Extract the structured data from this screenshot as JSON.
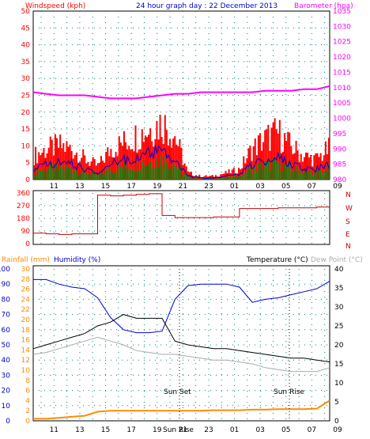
{
  "header": {
    "left_title": "Windspeed (kph)",
    "center_title": "24 hour graph day : 22 December 2013",
    "right_title": "Barometer (hpa)"
  },
  "bottom_header": {
    "rainfall": "Rainfall (mm)",
    "humidity": "Humidity (%)",
    "temperature": "Temperature (°C)",
    "dewpoint": "Dew Point (°C)"
  },
  "wind_dirs": [
    "N",
    "W",
    "S",
    "E",
    "N"
  ],
  "annotations": {
    "sunset": "Sun Set",
    "sunrise": "Sun Rise",
    "sun_rise_short": "Sun Rise"
  },
  "colors": {
    "windspeed": "#ff0000",
    "gust": "#0000cc",
    "avg": "#008000",
    "barometer": "#ff00ff",
    "direction": "#cc0000",
    "humidity": "#0000cc",
    "temperature": "#000000",
    "dewpoint": "#aaaaaa",
    "rainfall": "#ff8c00",
    "grid": "#008080",
    "left_axis_text": "#ff0000",
    "right_axis_text": "#ff00ff"
  },
  "chart_data": [
    {
      "type": "area",
      "title": "24 hour graph day : 22 December 2013",
      "ylabel": "Windspeed (kph)",
      "ylabel_right": "Barometer (hpa)",
      "x_ticks": [
        "11",
        "13",
        "15",
        "17",
        "19",
        "21",
        "23",
        "01",
        "03",
        "05",
        "07",
        "09"
      ],
      "ylim": [
        0,
        50
      ],
      "yticks": [
        0,
        5,
        10,
        15,
        20,
        25,
        30,
        35,
        40,
        45,
        50
      ],
      "ylim_right": [
        980,
        1035
      ],
      "yticks_right": [
        980,
        985,
        990,
        995,
        1000,
        1005,
        1010,
        1015,
        1020,
        1025,
        1030,
        1035
      ],
      "x": [
        "10",
        "11",
        "12",
        "13",
        "14",
        "15",
        "16",
        "17",
        "18",
        "19",
        "20",
        "21",
        "22",
        "23",
        "00",
        "01",
        "02",
        "03",
        "04",
        "05",
        "06",
        "07",
        "08",
        "09"
      ],
      "series": [
        {
          "name": "Windspeed (kph)",
          "values": [
            7,
            9,
            10,
            9,
            6,
            4,
            9,
            11,
            13,
            15,
            17,
            13,
            2,
            1,
            1,
            2,
            3,
            9,
            12,
            14,
            10,
            7,
            6,
            9
          ]
        },
        {
          "name": "Barometer (hpa)",
          "values": [
            1008.5,
            1008.0,
            1007.5,
            1007.5,
            1007.5,
            1007.0,
            1006.5,
            1006.5,
            1006.5,
            1007.0,
            1007.5,
            1008.0,
            1008.0,
            1008.5,
            1008.5,
            1008.5,
            1008.5,
            1008.5,
            1009.0,
            1009.0,
            1009.0,
            1009.5,
            1009.5,
            1010.5
          ]
        }
      ]
    },
    {
      "type": "line",
      "ylabel": "Wind direction",
      "ylim": [
        0,
        360
      ],
      "yticks": [
        0,
        90,
        180,
        270,
        360
      ],
      "x_ticks": [
        "11",
        "13",
        "15",
        "17",
        "19",
        "21",
        "23",
        "01",
        "03",
        "05",
        "07",
        "09"
      ],
      "x": [
        "10",
        "11",
        "12",
        "13",
        "14",
        "15",
        "16",
        "17",
        "18",
        "19",
        "20",
        "21",
        "22",
        "23",
        "00",
        "01",
        "02",
        "03",
        "04",
        "05",
        "06",
        "07",
        "08",
        "09"
      ],
      "series": [
        {
          "name": "Direction",
          "values": [
            75,
            70,
            65,
            70,
            70,
            345,
            340,
            345,
            350,
            355,
            200,
            185,
            185,
            185,
            190,
            190,
            250,
            250,
            250,
            255,
            255,
            255,
            260,
            260
          ]
        }
      ]
    },
    {
      "type": "line",
      "ylabel": "Humidity (%)",
      "ylim": [
        0,
        100
      ],
      "yticks": [
        0,
        10,
        20,
        30,
        40,
        50,
        60,
        70,
        80,
        90,
        100
      ],
      "ylim_rain": [
        0,
        30
      ],
      "yticks_rain": [
        0,
        2,
        4,
        6,
        8,
        10,
        12,
        14,
        16,
        18,
        20,
        22,
        24,
        26,
        28,
        30
      ],
      "ylim_right": [
        0,
        40
      ],
      "yticks_right": [
        0,
        5,
        10,
        15,
        20,
        25,
        30,
        35,
        40
      ],
      "x_ticks": [
        "11",
        "13",
        "15",
        "17",
        "19",
        "21",
        "23",
        "01",
        "03",
        "05",
        "07",
        "09"
      ],
      "x": [
        "10",
        "11",
        "12",
        "13",
        "14",
        "15",
        "16",
        "17",
        "18",
        "19",
        "20",
        "21",
        "22",
        "23",
        "00",
        "01",
        "02",
        "03",
        "04",
        "05",
        "06",
        "07",
        "08",
        "09"
      ],
      "series": [
        {
          "name": "Humidity (%)",
          "values": [
            93,
            93,
            90,
            88,
            87,
            81,
            68,
            60,
            58,
            58,
            59,
            80,
            89,
            90,
            90,
            90,
            88,
            78,
            80,
            81,
            83,
            85,
            87,
            92
          ]
        },
        {
          "name": "Temperature (°C)",
          "values": [
            19,
            20,
            21,
            22,
            23,
            25,
            26,
            28,
            27,
            27,
            27,
            21,
            20,
            19.5,
            19,
            19,
            18.5,
            18,
            17.5,
            17,
            16.5,
            16.5,
            16,
            15.5
          ]
        },
        {
          "name": "Dew Point (°C)",
          "values": [
            17.5,
            18,
            19,
            20,
            21,
            22,
            21,
            20,
            18.5,
            18,
            17.5,
            17.5,
            17,
            16.5,
            16,
            16,
            15.5,
            15,
            14,
            13.5,
            13,
            13,
            13,
            14
          ]
        },
        {
          "name": "Rainfall (mm)",
          "values": [
            0.4,
            0.4,
            0.6,
            0.8,
            1,
            1.8,
            2,
            2,
            2,
            2,
            2,
            2,
            2,
            2,
            2.1,
            2.1,
            2.1,
            2.2,
            2.2,
            2.3,
            2.3,
            2.3,
            2.4,
            4.0
          ]
        }
      ]
    }
  ]
}
